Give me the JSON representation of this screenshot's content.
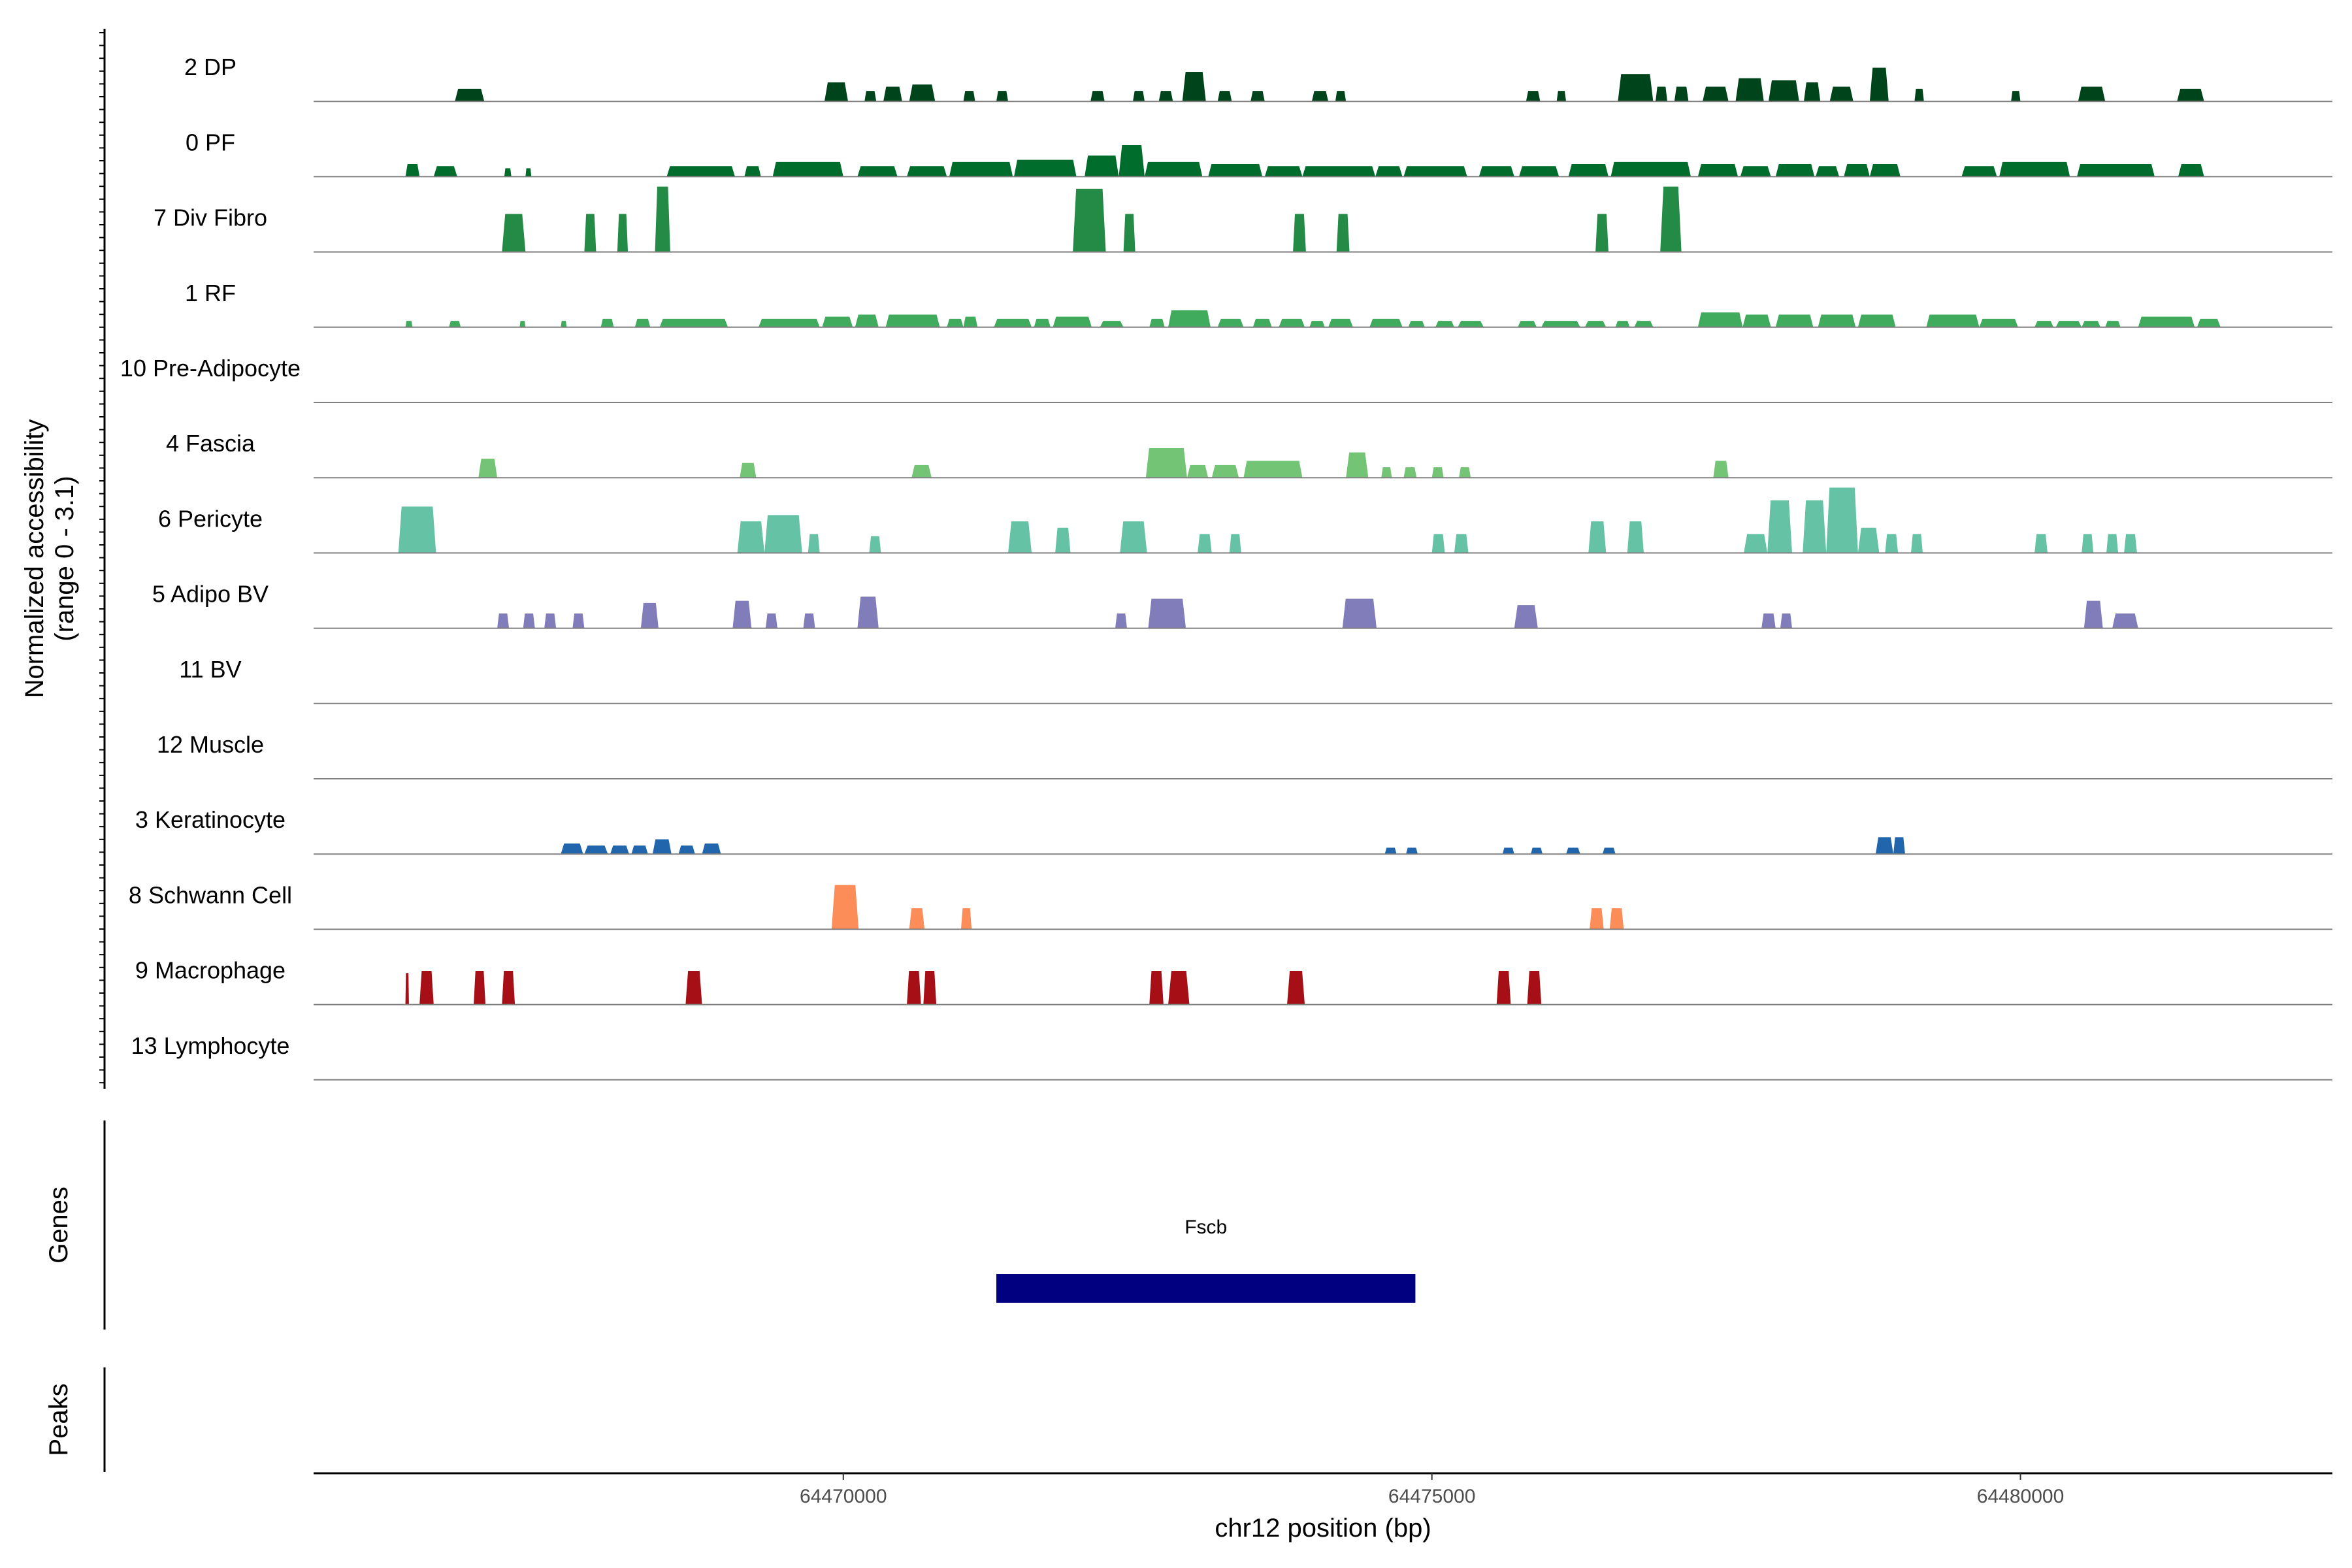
{
  "chart_data": {
    "type": "area",
    "title": "",
    "ylabel_line1": "Normalized accessibility",
    "ylabel_line2": "(range 0 - 3.1)",
    "y_range": [
      0,
      3.1
    ],
    "xlabel": "chr12 position (bp)",
    "x_range": [
      64465500,
      64482650
    ],
    "x_ticks": [
      64470000,
      64475000,
      64480000
    ],
    "x_tick_labels": [
      "64470000",
      "64475000",
      "64480000"
    ],
    "tracks": [
      {
        "name": "2 DP",
        "color": "#00441b",
        "peaks": [
          [
            64466700,
            64466950,
            0.6
          ],
          [
            64469840,
            64470040,
            0.9
          ],
          [
            64470180,
            64470280,
            0.5
          ],
          [
            64470340,
            64470500,
            0.7
          ],
          [
            64470560,
            64470780,
            0.8
          ],
          [
            64471020,
            64471120,
            0.5
          ],
          [
            64471300,
            64471400,
            0.5
          ],
          [
            64472100,
            64472220,
            0.5
          ],
          [
            64472460,
            64472560,
            0.5
          ],
          [
            64472680,
            64472800,
            0.5
          ],
          [
            64472880,
            64473080,
            1.4
          ],
          [
            64473180,
            64473300,
            0.5
          ],
          [
            64473460,
            64473580,
            0.5
          ],
          [
            64473980,
            64474120,
            0.5
          ],
          [
            64474180,
            64474270,
            0.5
          ],
          [
            64475800,
            64475920,
            0.5
          ],
          [
            64476060,
            64476140,
            0.5
          ],
          [
            64476580,
            64476880,
            1.3
          ],
          [
            64476900,
            64477000,
            0.7
          ],
          [
            64477060,
            64477180,
            0.7
          ],
          [
            64477300,
            64477520,
            0.7
          ],
          [
            64477580,
            64477820,
            1.1
          ],
          [
            64477860,
            64478120,
            1.0
          ],
          [
            64478160,
            64478300,
            0.9
          ],
          [
            64478380,
            64478580,
            0.7
          ],
          [
            64478720,
            64478880,
            1.6
          ],
          [
            64479100,
            64479180,
            0.6
          ],
          [
            64479920,
            64480000,
            0.5
          ],
          [
            64480490,
            64480720,
            0.7
          ],
          [
            64481330,
            64481560,
            0.6
          ]
        ]
      },
      {
        "name": "0 PF",
        "color": "#006d2c",
        "peaks": [
          [
            64466280,
            64466400,
            0.6
          ],
          [
            64466520,
            64466720,
            0.5
          ],
          [
            64467120,
            64467180,
            0.4
          ],
          [
            64467300,
            64467350,
            0.4
          ],
          [
            64468500,
            64469080,
            0.5
          ],
          [
            64469160,
            64469300,
            0.5
          ],
          [
            64469400,
            64470000,
            0.7
          ],
          [
            64470120,
            64470460,
            0.5
          ],
          [
            64470540,
            64470880,
            0.5
          ],
          [
            64470900,
            64471440,
            0.7
          ],
          [
            64471450,
            64471980,
            0.8
          ],
          [
            64472050,
            64472340,
            1.0
          ],
          [
            64472340,
            64472560,
            1.5
          ],
          [
            64472560,
            64473050,
            0.7
          ],
          [
            64473100,
            64473560,
            0.6
          ],
          [
            64473580,
            64473900,
            0.5
          ],
          [
            64473900,
            64474520,
            0.5
          ],
          [
            64474520,
            64474750,
            0.5
          ],
          [
            64474760,
            64475300,
            0.5
          ],
          [
            64475400,
            64475700,
            0.5
          ],
          [
            64475740,
            64476080,
            0.5
          ],
          [
            64476160,
            64476500,
            0.6
          ],
          [
            64476520,
            64477200,
            0.7
          ],
          [
            64477260,
            64477600,
            0.6
          ],
          [
            64477620,
            64477880,
            0.5
          ],
          [
            64477920,
            64478250,
            0.6
          ],
          [
            64478260,
            64478460,
            0.5
          ],
          [
            64478500,
            64478720,
            0.6
          ],
          [
            64478720,
            64478980,
            0.6
          ],
          [
            64479500,
            64479800,
            0.5
          ],
          [
            64479820,
            64480420,
            0.7
          ],
          [
            64480480,
            64481140,
            0.6
          ],
          [
            64481340,
            64481560,
            0.6
          ]
        ]
      },
      {
        "name": "7 Div Fibro",
        "color": "#238b45",
        "peaks": [
          [
            64467100,
            64467300,
            1.8
          ],
          [
            64467800,
            64467900,
            1.8
          ],
          [
            64468080,
            64468170,
            1.8
          ],
          [
            64468400,
            64468530,
            3.1
          ],
          [
            64471950,
            64472230,
            3.0
          ],
          [
            64472380,
            64472480,
            1.8
          ],
          [
            64473820,
            64473930,
            1.8
          ],
          [
            64474190,
            64474300,
            1.8
          ],
          [
            64476390,
            64476500,
            1.8
          ],
          [
            64476940,
            64477120,
            3.1
          ]
        ]
      },
      {
        "name": "1 RF",
        "color": "#41ab5d",
        "peaks": [
          [
            64466280,
            64466340,
            0.3
          ],
          [
            64466650,
            64466750,
            0.3
          ],
          [
            64467250,
            64467300,
            0.3
          ],
          [
            64467600,
            64467650,
            0.3
          ],
          [
            64467940,
            64468050,
            0.4
          ],
          [
            64468230,
            64468360,
            0.4
          ],
          [
            64468440,
            64469020,
            0.4
          ],
          [
            64469280,
            64469800,
            0.4
          ],
          [
            64469820,
            64470080,
            0.5
          ],
          [
            64470100,
            64470300,
            0.6
          ],
          [
            64470360,
            64470820,
            0.6
          ],
          [
            64470880,
            64471020,
            0.4
          ],
          [
            64471020,
            64471140,
            0.5
          ],
          [
            64471280,
            64471600,
            0.4
          ],
          [
            64471620,
            64471760,
            0.4
          ],
          [
            64471780,
            64472110,
            0.5
          ],
          [
            64472180,
            64472380,
            0.3
          ],
          [
            64472600,
            64472730,
            0.4
          ],
          [
            64472760,
            64473120,
            0.8
          ],
          [
            64473180,
            64473400,
            0.4
          ],
          [
            64473480,
            64473640,
            0.4
          ],
          [
            64473700,
            64473920,
            0.4
          ],
          [
            64473960,
            64474090,
            0.3
          ],
          [
            64474120,
            64474330,
            0.4
          ],
          [
            64474470,
            64474750,
            0.4
          ],
          [
            64474800,
            64474940,
            0.3
          ],
          [
            64475030,
            64475190,
            0.3
          ],
          [
            64475220,
            64475440,
            0.3
          ],
          [
            64475730,
            64475890,
            0.3
          ],
          [
            64475930,
            64476260,
            0.3
          ],
          [
            64476300,
            64476480,
            0.3
          ],
          [
            64476560,
            64476680,
            0.3
          ],
          [
            64476720,
            64476880,
            0.3
          ],
          [
            64477260,
            64477640,
            0.7
          ],
          [
            64477640,
            64477880,
            0.6
          ],
          [
            64477920,
            64478240,
            0.6
          ],
          [
            64478280,
            64478600,
            0.6
          ],
          [
            64478620,
            64478940,
            0.6
          ],
          [
            64479200,
            64479650,
            0.6
          ],
          [
            64479650,
            64479980,
            0.4
          ],
          [
            64480120,
            64480280,
            0.3
          ],
          [
            64480300,
            64480520,
            0.3
          ],
          [
            64480520,
            64480680,
            0.3
          ],
          [
            64480720,
            64480850,
            0.3
          ],
          [
            64481000,
            64481480,
            0.5
          ],
          [
            64481500,
            64481700,
            0.4
          ]
        ]
      },
      {
        "name": "10 Pre-Adipocyte",
        "color": "#74c476",
        "peaks": []
      },
      {
        "name": "4 Fascia",
        "color": "#74c476",
        "peaks": [
          [
            64466900,
            64467060,
            0.9
          ],
          [
            64469120,
            64469260,
            0.7
          ],
          [
            64470580,
            64470750,
            0.6
          ],
          [
            64472570,
            64472920,
            1.4
          ],
          [
            64472920,
            64473100,
            0.6
          ],
          [
            64473130,
            64473360,
            0.6
          ],
          [
            64473400,
            64473900,
            0.8
          ],
          [
            64474270,
            64474460,
            1.2
          ],
          [
            64474570,
            64474660,
            0.5
          ],
          [
            64474760,
            64474870,
            0.5
          ],
          [
            64475000,
            64475100,
            0.5
          ],
          [
            64475230,
            64475330,
            0.5
          ],
          [
            64477390,
            64477520,
            0.8
          ]
        ]
      },
      {
        "name": "6 Pericyte",
        "color": "#66c2a4",
        "peaks": [
          [
            64466220,
            64466540,
            2.2
          ],
          [
            64469100,
            64469330,
            1.5
          ],
          [
            64469330,
            64469650,
            1.8
          ],
          [
            64469700,
            64469800,
            0.9
          ],
          [
            64470220,
            64470320,
            0.8
          ],
          [
            64471400,
            64471600,
            1.5
          ],
          [
            64471800,
            64471930,
            1.2
          ],
          [
            64472350,
            64472580,
            1.5
          ],
          [
            64473010,
            64473130,
            0.9
          ],
          [
            64473280,
            64473380,
            0.9
          ],
          [
            64475000,
            64475110,
            0.9
          ],
          [
            64475190,
            64475310,
            0.9
          ],
          [
            64476330,
            64476480,
            1.5
          ],
          [
            64476660,
            64476800,
            1.5
          ],
          [
            64477650,
            64477850,
            0.9
          ],
          [
            64477850,
            64478060,
            2.5
          ],
          [
            64478150,
            64478350,
            2.5
          ],
          [
            64478350,
            64478620,
            3.1
          ],
          [
            64478620,
            64478800,
            1.2
          ],
          [
            64478850,
            64478960,
            0.9
          ],
          [
            64479070,
            64479170,
            0.9
          ],
          [
            64480120,
            64480230,
            0.9
          ],
          [
            64480520,
            64480620,
            0.9
          ],
          [
            64480730,
            64480830,
            0.9
          ],
          [
            64480880,
            64480990,
            0.9
          ]
        ]
      },
      {
        "name": "5 Adipo BV",
        "color": "#807dba",
        "peaks": [
          [
            64467060,
            64467160,
            0.7
          ],
          [
            64467280,
            64467380,
            0.7
          ],
          [
            64467460,
            64467560,
            0.7
          ],
          [
            64467700,
            64467800,
            0.7
          ],
          [
            64468280,
            64468430,
            1.2
          ],
          [
            64469060,
            64469220,
            1.3
          ],
          [
            64469340,
            64469440,
            0.7
          ],
          [
            64469660,
            64469760,
            0.7
          ],
          [
            64470120,
            64470300,
            1.5
          ],
          [
            64472310,
            64472410,
            0.7
          ],
          [
            64472590,
            64472910,
            1.4
          ],
          [
            64474240,
            64474530,
            1.4
          ],
          [
            64475700,
            64475900,
            1.1
          ],
          [
            64477800,
            64477920,
            0.7
          ],
          [
            64477960,
            64478060,
            0.7
          ],
          [
            64480540,
            64480700,
            1.3
          ],
          [
            64480780,
            64481000,
            0.7
          ]
        ]
      },
      {
        "name": "11 BV",
        "color": "#6a51a3",
        "peaks": []
      },
      {
        "name": "12 Muscle",
        "color": "#2171b5",
        "peaks": []
      },
      {
        "name": "3 Keratinocyte",
        "color": "#2166ac",
        "peaks": [
          [
            64467600,
            64467790,
            0.5
          ],
          [
            64467800,
            64468000,
            0.4
          ],
          [
            64468020,
            64468180,
            0.4
          ],
          [
            64468200,
            64468340,
            0.4
          ],
          [
            64468380,
            64468540,
            0.7
          ],
          [
            64468600,
            64468740,
            0.4
          ],
          [
            64468800,
            64468960,
            0.5
          ],
          [
            64474600,
            64474700,
            0.3
          ],
          [
            64474780,
            64474880,
            0.3
          ],
          [
            64475600,
            64475700,
            0.3
          ],
          [
            64475840,
            64475940,
            0.3
          ],
          [
            64476140,
            64476260,
            0.3
          ],
          [
            64476450,
            64476560,
            0.3
          ],
          [
            64478770,
            64478920,
            0.8
          ],
          [
            64478920,
            64479020,
            0.8
          ]
        ]
      },
      {
        "name": "8 Schwann Cell",
        "color": "#fc8d59",
        "peaks": [
          [
            64469900,
            64470130,
            2.1
          ],
          [
            64470560,
            64470690,
            1.0
          ],
          [
            64471000,
            64471090,
            1.0
          ],
          [
            64476340,
            64476460,
            1.0
          ],
          [
            64476510,
            64476630,
            1.0
          ]
        ]
      },
      {
        "name": "9 Macrophage",
        "color": "#a50f15",
        "peaks": [
          [
            64466280,
            64466310,
            1.5
          ],
          [
            64466400,
            64466520,
            1.6
          ],
          [
            64466860,
            64466960,
            1.6
          ],
          [
            64467100,
            64467210,
            1.6
          ],
          [
            64468660,
            64468800,
            1.6
          ],
          [
            64470540,
            64470660,
            1.6
          ],
          [
            64470680,
            64470790,
            1.6
          ],
          [
            64472600,
            64472720,
            1.6
          ],
          [
            64472760,
            64472940,
            1.6
          ],
          [
            64473770,
            64473920,
            1.6
          ],
          [
            64475550,
            64475670,
            1.6
          ],
          [
            64475810,
            64475930,
            1.6
          ]
        ]
      },
      {
        "name": "13 Lymphocyte",
        "color": "#de2d26",
        "peaks": []
      }
    ],
    "genes_title": "Genes",
    "genes": [
      {
        "name": "Fscb",
        "start": 64471300,
        "end": 64474860,
        "color": "#000080"
      }
    ],
    "peaks_title": "Peaks",
    "peaks_annotations": []
  }
}
